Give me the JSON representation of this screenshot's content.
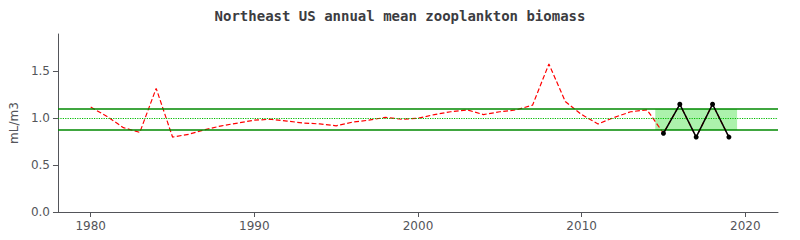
{
  "chart_data": {
    "type": "line",
    "title": "Northeast US annual mean zooplankton biomass",
    "y_label": "mL/m3",
    "x": [
      1980,
      1981,
      1982,
      1983,
      1984,
      1985,
      1986,
      1987,
      1988,
      1989,
      1990,
      1991,
      1992,
      1993,
      1994,
      1995,
      1996,
      1997,
      1998,
      1999,
      2000,
      2001,
      2002,
      2003,
      2004,
      2005,
      2006,
      2007,
      2008,
      2009,
      2010,
      2011,
      2012,
      2013,
      2014,
      2015,
      2016,
      2017,
      2018,
      2019
    ],
    "series": [
      {
        "values": [
          1.12,
          1.02,
          0.9,
          0.85,
          1.32,
          0.8,
          0.83,
          0.88,
          0.92,
          0.95,
          0.98,
          0.99,
          0.97,
          0.95,
          0.94,
          0.92,
          0.96,
          0.98,
          1.01,
          0.99,
          1.0,
          1.04,
          1.07,
          1.09,
          1.04,
          1.07,
          1.09,
          1.14,
          1.58,
          1.18,
          1.04,
          0.94,
          1.01,
          1.07,
          1.09,
          0.84,
          1.15,
          0.8,
          1.15,
          0.8
        ],
        "color": "#ff0000",
        "line_style": "dashed"
      },
      {
        "x": [
          2015,
          2016,
          2017,
          2018,
          2019
        ],
        "values": [
          0.84,
          1.15,
          0.8,
          1.15,
          0.8
        ],
        "color": "#000000",
        "line_style": "solid",
        "marker": "circle"
      }
    ],
    "hlines": [
      {
        "value": 1.1,
        "color": "#008800",
        "line_style": "solid"
      },
      {
        "value": 0.875,
        "color": "#008800",
        "line_style": "solid"
      },
      {
        "value": 1.0,
        "color": "#00bb00",
        "line_style": "dotted"
      }
    ],
    "highlight_box": {
      "x": [
        2014.5,
        2019.5
      ],
      "y": [
        0.875,
        1.1
      ],
      "color": "#90ee90"
    },
    "xlim": [
      1978,
      2022
    ],
    "xticks": [
      1980,
      1990,
      2000,
      2010,
      2020
    ],
    "ylim": [
      0,
      1.9
    ],
    "yticks": [
      {
        "value": 0,
        "label": "0.0"
      },
      0.5,
      {
        "value": 1,
        "label": "1.0"
      },
      1.5
    ],
    "grid": false
  }
}
